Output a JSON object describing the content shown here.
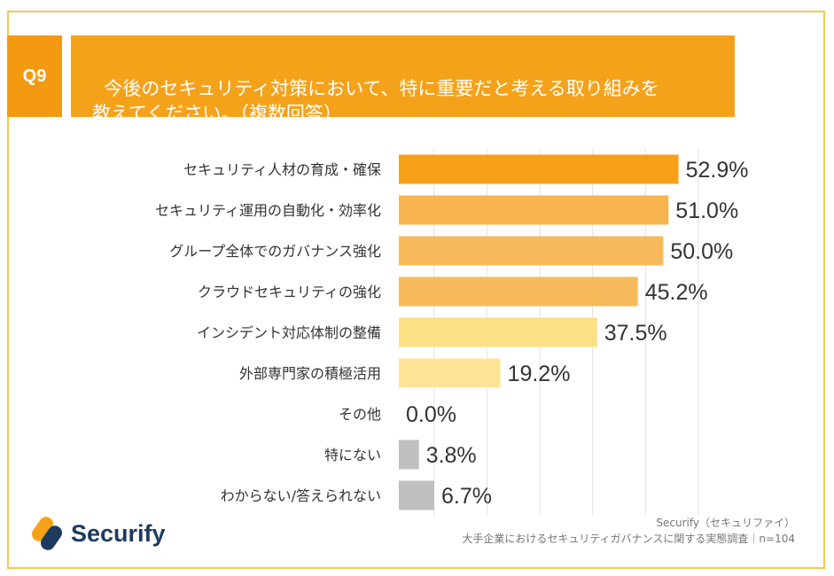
{
  "header": {
    "question_number": "Q9",
    "question_text": "今後のセキュリティ対策において、特に重要だと考える取り組みを\n教えてください。（複数回答）"
  },
  "chart_data": {
    "type": "bar",
    "orientation": "horizontal",
    "title": "今後のセキュリティ対策において、特に重要だと考える取り組みを教えてください。（複数回答）",
    "categories": [
      "セキュリティ人材の育成・確保",
      "セキュリティ運用の自動化・効率化",
      "グループ全体でのガバナンス強化",
      "クラウドセキュリティの強化",
      "インシデント対応体制の整備",
      "外部専門家の積極活用",
      "その他",
      "特にない",
      "わからない/答えられない"
    ],
    "values": [
      52.9,
      51.0,
      50.0,
      45.2,
      37.5,
      19.2,
      0.0,
      3.8,
      6.7
    ],
    "value_labels": [
      "52.9%",
      "51.0%",
      "50.0%",
      "45.2%",
      "37.5%",
      "19.2%",
      "0.0%",
      "3.8%",
      "6.7%"
    ],
    "colors": [
      "#f6a01a",
      "#f8b44e",
      "#f8ba5a",
      "#f8ba5a",
      "#fddf86",
      "#fde497",
      "#fde497",
      "#bfbfbf",
      "#bfbfbf"
    ],
    "xlim": [
      0,
      60
    ],
    "grid": true,
    "unit": "%"
  },
  "brand": {
    "name": "Securify",
    "logo_colors": [
      "#f5a21b",
      "#1f3a5f"
    ]
  },
  "footer": {
    "source_line1": "Securify（セキュリファイ）",
    "source_line2": "大手企業におけるセキュリティガバナンスに関する実態調査｜n=104"
  }
}
